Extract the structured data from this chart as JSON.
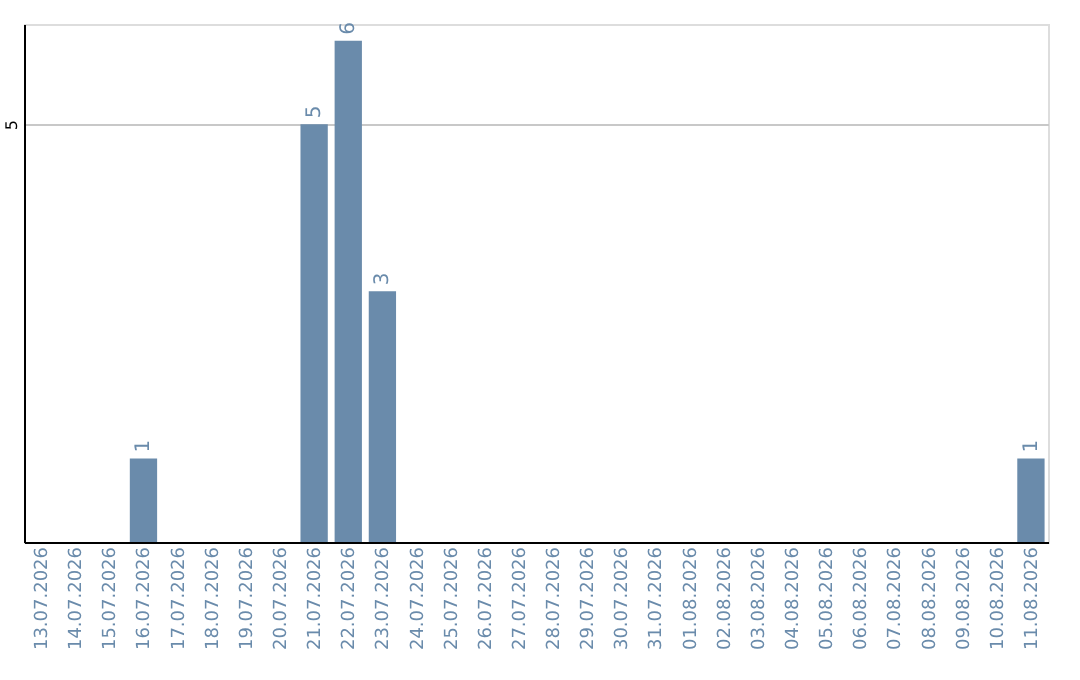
{
  "chart_data": {
    "type": "bar",
    "categories": [
      "13.07.2026",
      "14.07.2026",
      "15.07.2026",
      "16.07.2026",
      "17.07.2026",
      "18.07.2026",
      "19.07.2026",
      "20.07.2026",
      "21.07.2026",
      "22.07.2026",
      "23.07.2026",
      "24.07.2026",
      "25.07.2026",
      "26.07.2026",
      "27.07.2026",
      "28.07.2026",
      "29.07.2026",
      "30.07.2026",
      "31.07.2026",
      "01.08.2026",
      "02.08.2026",
      "03.08.2026",
      "04.08.2026",
      "05.08.2026",
      "06.08.2026",
      "07.08.2026",
      "08.08.2026",
      "09.08.2026",
      "10.08.2026",
      "11.08.2026"
    ],
    "values": [
      0,
      0,
      0,
      1,
      0,
      0,
      0,
      0,
      5,
      6,
      3,
      0,
      0,
      0,
      0,
      0,
      0,
      0,
      0,
      0,
      0,
      0,
      0,
      0,
      0,
      0,
      0,
      0,
      0,
      1
    ],
    "value_labels": [
      null,
      null,
      null,
      "1",
      null,
      null,
      null,
      null,
      "5",
      "6",
      "3",
      null,
      null,
      null,
      null,
      null,
      null,
      null,
      null,
      null,
      null,
      null,
      null,
      null,
      null,
      null,
      null,
      null,
      null,
      "1"
    ],
    "color": "#6a8bab",
    "ylim": [
      0,
      6.2
    ],
    "yticks": [
      5
    ],
    "grid": "y"
  }
}
